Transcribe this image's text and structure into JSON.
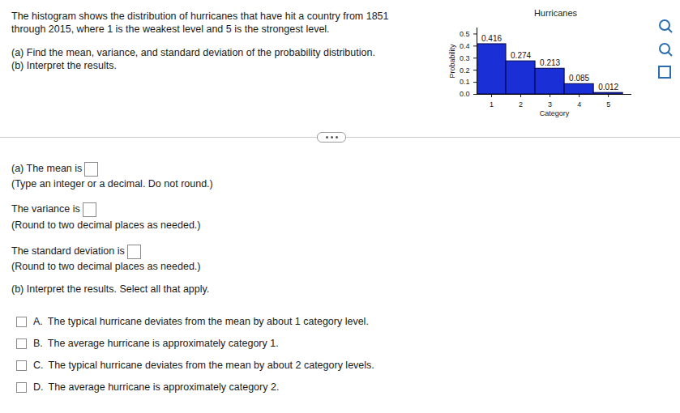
{
  "page": {
    "problem": "The histogram shows the distribution of hurricanes that have hit a country from 1851 through 2015, where 1 is the weakest level and 5 is the strongest level.",
    "task_a": "(a) Find the mean, variance, and standard deviation of the probability distribution.",
    "task_b": "(b) Interpret the results.",
    "answers": [
      {
        "prompt": "(a) The mean is",
        "note": "(Type an integer or a decimal. Do not round.)"
      },
      {
        "prompt": "The variance is",
        "note": "(Round to two decimal places as needed.)"
      },
      {
        "prompt": "The standard deviation is",
        "note": "(Round to two decimal places as needed.)"
      }
    ],
    "part_b_prompt": "(b) Interpret the results. Select all that apply.",
    "options": [
      {
        "letter": "A.",
        "text": "The typical hurricane deviates from the mean by about 1 category level."
      },
      {
        "letter": "B.",
        "text": "The average hurricane is approximately category 1."
      },
      {
        "letter": "C.",
        "text": "The typical hurricane deviates from the mean by about 2 category levels."
      },
      {
        "letter": "D.",
        "text": "The average hurricane is approximately category 2."
      }
    ]
  },
  "chart_data": {
    "type": "histogram",
    "title": "Hurricanes",
    "x_label": "Category",
    "y_label": "Probability",
    "bins": [
      0.5,
      1.5,
      2.5,
      3.5,
      4.5,
      5.5
    ],
    "values": [
      0.416,
      0.274,
      0.213,
      0.085,
      0.012
    ],
    "color": "#1a2fd6",
    "data_labels": true,
    "xlim": [
      0.5,
      5.8
    ],
    "xticks": [
      1,
      2,
      3,
      4,
      5
    ],
    "ylim": [
      0,
      0.55
    ],
    "yticks": [
      {
        "value": 0,
        "label": "0.0"
      },
      0.1,
      0.2,
      0.3,
      0.4,
      0.5
    ],
    "grid": false
  }
}
